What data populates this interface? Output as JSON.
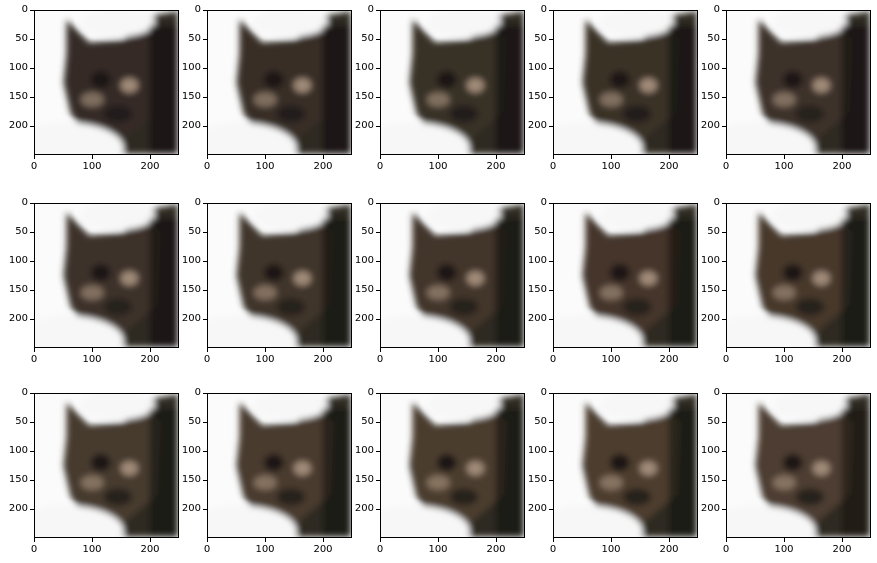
{
  "figure": {
    "rows": 3,
    "cols": 5,
    "x_tick_labels": [
      "0",
      "100",
      "200"
    ],
    "y_tick_labels": [
      "0",
      "50",
      "100",
      "150",
      "200"
    ],
    "axis_max": 250,
    "colors": {
      "background": "#fbfbfb",
      "fur_dark": "#2f2924",
      "fur_brown": "#5a4634",
      "fur_light": "#a08a78",
      "white_fur": "#f7f7f7"
    }
  }
}
